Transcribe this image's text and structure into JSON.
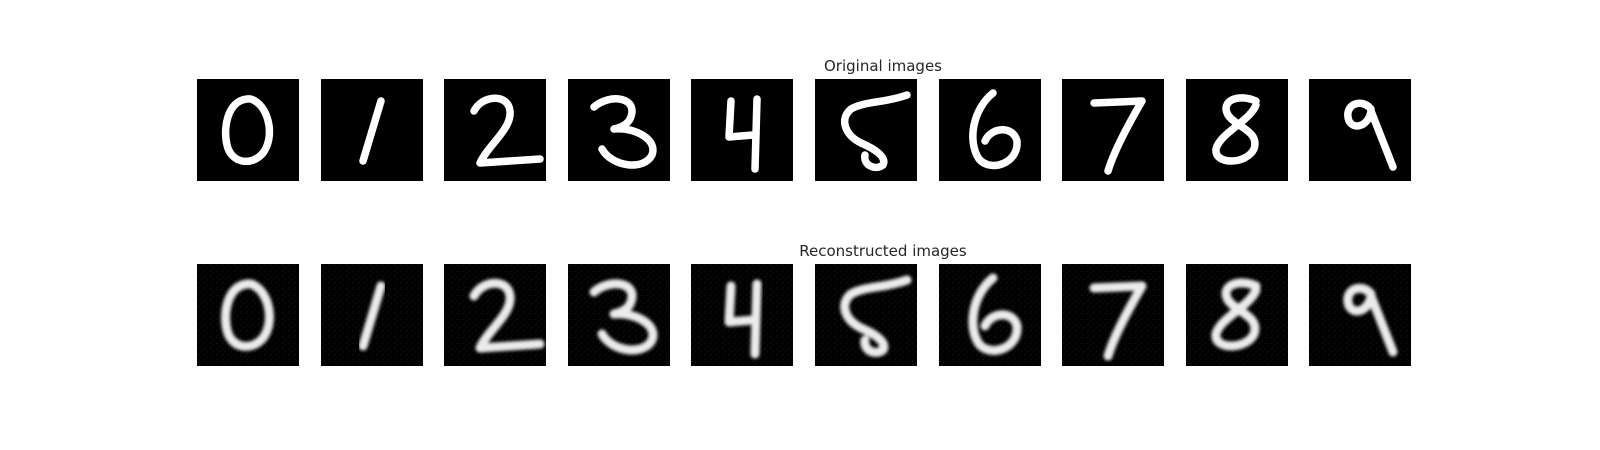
{
  "rows": [
    {
      "title": "Original images",
      "variant": "original"
    },
    {
      "title": "Reconstructed images",
      "variant": "reconstructed"
    }
  ],
  "digits": [
    "0",
    "1",
    "2",
    "3",
    "4",
    "5",
    "6",
    "7",
    "8",
    "9"
  ],
  "colors": {
    "background": "#ffffff",
    "panel": "#000000",
    "stroke": "#ffffff",
    "title": "#262626"
  }
}
